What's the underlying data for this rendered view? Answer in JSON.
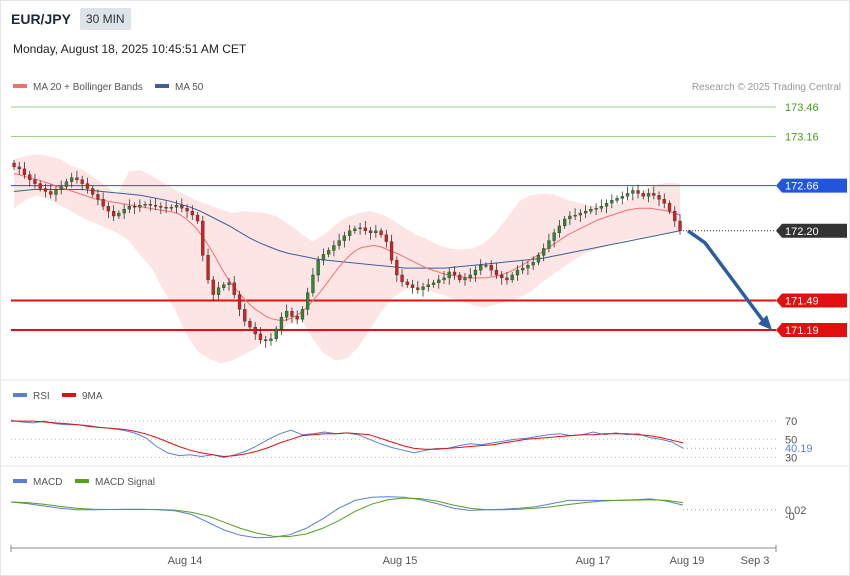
{
  "header": {
    "symbol": "EUR/JPY",
    "timeframe": "30 MIN",
    "datetime": "Monday, August 18, 2025 10:45:51 AM CET"
  },
  "credit": "Research © 2025 Trading Central",
  "colors": {
    "ma20": "#f07070",
    "bollinger_fill": "#fde0e0",
    "ma50": "#3e5f96",
    "candle_up": "#2e8b2e",
    "candle_down": "#d32020",
    "resistance_green": "#a3cc88",
    "pivot_blue": "#2255dd",
    "support_red": "#e01010",
    "current": "#333333",
    "arrow": "#2b5d9e",
    "rsi": "#5b7fd6",
    "rsi_ma": "#e01010",
    "macd": "#5b7fd6",
    "macd_signal": "#55a020"
  },
  "chart_data": [
    {
      "type": "candlestick",
      "title": "EUR/JPY",
      "legend": [
        "MA 20 + Bollinger Bands",
        "MA 50"
      ],
      "legend_placement": "top-left",
      "x_ticks": [
        "Aug 14",
        "Aug 15",
        "Aug 17",
        "Aug 19",
        "Sep 3"
      ],
      "ylim": [
        170.6,
        173.7
      ],
      "levels": [
        {
          "value": 173.46,
          "label": "173.46",
          "kind": "resistance"
        },
        {
          "value": 173.16,
          "label": "173.16",
          "kind": "resistance"
        },
        {
          "value": 172.66,
          "label": "172.66",
          "kind": "pivot"
        },
        {
          "value": 172.2,
          "label": "172.20",
          "kind": "current"
        },
        {
          "value": 171.49,
          "label": "171.49",
          "kind": "support"
        },
        {
          "value": 171.19,
          "label": "171.19",
          "kind": "support"
        }
      ],
      "forecast_arrow": {
        "from": 172.2,
        "to": 171.19
      },
      "closes": [
        172.85,
        172.83,
        172.77,
        172.72,
        172.68,
        172.63,
        172.6,
        172.57,
        172.62,
        172.65,
        172.7,
        172.74,
        172.72,
        172.68,
        172.63,
        172.57,
        172.52,
        172.45,
        172.4,
        172.35,
        172.38,
        172.42,
        172.45,
        172.44,
        172.46,
        172.47,
        172.46,
        172.45,
        172.44,
        172.43,
        172.44,
        172.46,
        172.43,
        172.4,
        172.36,
        172.3,
        171.95,
        171.7,
        171.55,
        171.62,
        171.65,
        171.67,
        171.55,
        171.4,
        171.28,
        171.22,
        171.15,
        171.09,
        171.08,
        171.1,
        171.2,
        171.32,
        171.38,
        171.33,
        171.3,
        171.4,
        171.57,
        171.75,
        171.9,
        171.96,
        172.0,
        172.05,
        172.1,
        172.15,
        172.2,
        172.22,
        172.23,
        172.2,
        172.18,
        172.2,
        172.16,
        172.09,
        171.9,
        171.75,
        171.68,
        171.65,
        171.62,
        171.6,
        171.63,
        171.65,
        171.67,
        171.7,
        171.72,
        171.78,
        171.75,
        171.7,
        171.72,
        171.75,
        171.8,
        171.85,
        171.85,
        171.8,
        171.75,
        171.72,
        171.7,
        171.75,
        171.8,
        171.82,
        171.85,
        171.88,
        171.95,
        172.02,
        172.1,
        172.18,
        172.25,
        172.32,
        172.35,
        172.36,
        172.38,
        172.4,
        172.42,
        172.43,
        172.45,
        172.48,
        172.51,
        172.53,
        172.55,
        172.58,
        172.61,
        172.58,
        172.55,
        172.58,
        172.56,
        172.52,
        172.48,
        172.4,
        172.3,
        172.2
      ],
      "ma20": [
        172.78,
        172.77,
        172.75,
        172.73,
        172.72,
        172.7,
        172.68,
        172.66,
        172.64,
        172.62,
        172.6,
        172.58,
        172.56,
        172.54,
        172.52,
        172.51,
        172.5,
        172.49,
        172.48,
        172.47,
        172.46,
        172.45,
        172.44,
        172.43,
        172.42,
        172.41,
        172.4,
        172.39,
        172.37,
        172.33,
        172.28,
        172.22,
        172.14,
        172.05,
        171.95,
        171.84,
        171.74,
        171.65,
        171.58,
        171.51,
        171.45,
        171.4,
        171.36,
        171.32,
        171.3,
        171.29,
        171.29,
        171.31,
        171.34,
        171.38,
        171.44,
        171.51,
        171.58,
        171.66,
        171.74,
        171.82,
        171.89,
        171.95,
        172.0,
        172.03,
        172.04,
        172.05,
        172.04,
        172.02,
        171.99,
        171.97,
        171.94,
        171.91,
        171.88,
        171.85,
        171.82,
        171.8,
        171.78,
        171.76,
        171.75,
        171.74,
        171.73,
        171.72,
        171.72,
        171.72,
        171.72,
        171.73,
        171.74,
        171.76,
        171.78,
        171.81,
        171.84,
        171.88,
        171.92,
        171.96,
        172.0,
        172.04,
        172.08,
        172.12,
        172.16,
        172.19,
        172.22,
        172.25,
        172.28,
        172.31,
        172.33,
        172.35,
        172.37,
        172.39,
        172.41,
        172.42,
        172.43,
        172.43,
        172.43,
        172.42,
        172.41,
        172.4,
        172.38,
        172.36
      ],
      "ma50": [
        172.6,
        172.61,
        172.62,
        172.62,
        172.62,
        172.62,
        172.62,
        172.62,
        172.61,
        172.6,
        172.59,
        172.58,
        172.57,
        172.56,
        172.54,
        172.52,
        172.5,
        172.47,
        172.44,
        172.4,
        172.35,
        172.3,
        172.25,
        172.19,
        172.13,
        172.08,
        172.04,
        172.0,
        171.97,
        171.95,
        171.93,
        171.91,
        171.9,
        171.89,
        171.88,
        171.87,
        171.86,
        171.85,
        171.84,
        171.83,
        171.82,
        171.82,
        171.82,
        171.82,
        171.82,
        171.83,
        171.84,
        171.85,
        171.86,
        171.87,
        171.88,
        171.89,
        171.9,
        171.91,
        171.92,
        171.94,
        171.96,
        171.98,
        172.0,
        172.02,
        172.04,
        172.06,
        172.08,
        172.1,
        172.12,
        172.14,
        172.16,
        172.18,
        172.2
      ],
      "boll_upper": [
        172.93,
        172.96,
        172.98,
        172.96,
        172.93,
        172.86,
        172.82,
        172.74,
        172.66,
        172.57,
        172.8,
        172.82,
        172.76,
        172.69,
        172.62,
        172.56,
        172.5,
        172.46,
        172.42,
        172.38,
        172.4,
        172.39,
        172.38,
        172.34,
        172.26,
        172.17,
        172.09,
        172.16,
        172.26,
        172.34,
        172.38,
        172.4,
        172.37,
        172.31,
        172.23,
        172.16,
        172.11,
        172.05,
        172.02,
        172.01,
        172.02,
        172.08,
        172.19,
        172.34,
        172.5,
        172.56,
        172.58,
        172.57,
        172.52,
        172.49,
        172.46,
        172.45,
        172.46,
        172.48,
        172.55,
        172.62,
        172.67,
        172.69,
        172.68
      ],
      "boll_lower": [
        172.43,
        172.51,
        172.56,
        172.52,
        172.46,
        172.4,
        172.33,
        172.28,
        172.23,
        172.18,
        172.1,
        171.95,
        171.82,
        171.6,
        171.4,
        171.15,
        170.97,
        170.9,
        170.85,
        170.88,
        170.94,
        171.0,
        171.08,
        171.16,
        171.25,
        171.3,
        171.1,
        170.95,
        170.88,
        170.9,
        171.02,
        171.2,
        171.38,
        171.52,
        171.6,
        171.62,
        171.6,
        171.56,
        171.52,
        171.48,
        171.44,
        171.42,
        171.45,
        171.48,
        171.52,
        171.58,
        171.68,
        171.76,
        171.84,
        171.92,
        171.98,
        172.02,
        172.06,
        172.1,
        172.12,
        172.14,
        172.16,
        172.18,
        172.2
      ]
    },
    {
      "type": "line",
      "legend": [
        "RSI",
        "9MA"
      ],
      "legend_placement": "top-left",
      "ylim": [
        25,
        80
      ],
      "levels": [
        {
          "value": 70,
          "label": "70"
        },
        {
          "value": 50,
          "label": "50"
        },
        {
          "value": 30,
          "label": "30"
        }
      ],
      "current_label": "40.19",
      "series": [
        {
          "name": "RSI",
          "values": [
            71,
            69,
            68,
            70,
            67,
            66,
            66,
            65,
            63,
            62,
            60,
            57,
            52,
            42,
            35,
            32,
            33,
            31,
            33,
            30,
            33,
            37,
            43,
            50,
            56,
            60,
            55,
            56,
            58,
            56,
            57,
            55,
            50,
            45,
            41,
            38,
            35,
            38,
            40,
            40,
            43,
            45,
            44,
            46,
            48,
            50,
            51,
            53,
            55,
            56,
            54,
            55,
            58,
            55,
            57,
            55,
            56,
            52,
            50,
            47,
            40.19
          ]
        },
        {
          "name": "9MA",
          "values": [
            70,
            70,
            70,
            69,
            68,
            67,
            66,
            64,
            63,
            62,
            61,
            59,
            56,
            52,
            47,
            42,
            38,
            35,
            33,
            31,
            32,
            34,
            37,
            41,
            46,
            50,
            54,
            55,
            56,
            56,
            57,
            56,
            55,
            51,
            47,
            43,
            40,
            39,
            39,
            40,
            41,
            42,
            43,
            44,
            46,
            48,
            50,
            51,
            52,
            53,
            54,
            55,
            55,
            56,
            56,
            56,
            55,
            54,
            52,
            49,
            46
          ]
        }
      ]
    },
    {
      "type": "line",
      "legend": [
        "MACD",
        "MACD Signal"
      ],
      "legend_placement": "top-left",
      "ylim": [
        -0.09,
        0.09
      ],
      "tick_labels": [
        {
          "value": 0.02,
          "label": "0.02"
        },
        {
          "value": 0,
          "label": "-0"
        }
      ],
      "series": [
        {
          "name": "MACD",
          "values": [
            0.045,
            0.04,
            0.032,
            0.025,
            0.02,
            0.02,
            0.021,
            0.022,
            0.022,
            0.02,
            0.017,
            0.005,
            -0.02,
            -0.045,
            -0.062,
            -0.07,
            -0.068,
            -0.06,
            -0.04,
            -0.01,
            0.025,
            0.05,
            0.06,
            0.062,
            0.06,
            0.052,
            0.04,
            0.025,
            0.018,
            0.02,
            0.022,
            0.025,
            0.03,
            0.04,
            0.05,
            0.05,
            0.05,
            0.05,
            0.052,
            0.055,
            0.048,
            0.035
          ]
        },
        {
          "name": "MACD Signal",
          "values": [
            0.045,
            0.043,
            0.038,
            0.031,
            0.025,
            0.022,
            0.021,
            0.021,
            0.021,
            0.021,
            0.019,
            0.012,
            0.0,
            -0.02,
            -0.04,
            -0.055,
            -0.065,
            -0.066,
            -0.058,
            -0.04,
            -0.015,
            0.015,
            0.038,
            0.052,
            0.058,
            0.056,
            0.048,
            0.035,
            0.025,
            0.02,
            0.02,
            0.022,
            0.025,
            0.03,
            0.037,
            0.043,
            0.048,
            0.05,
            0.051,
            0.052,
            0.05,
            0.043
          ]
        }
      ]
    }
  ]
}
